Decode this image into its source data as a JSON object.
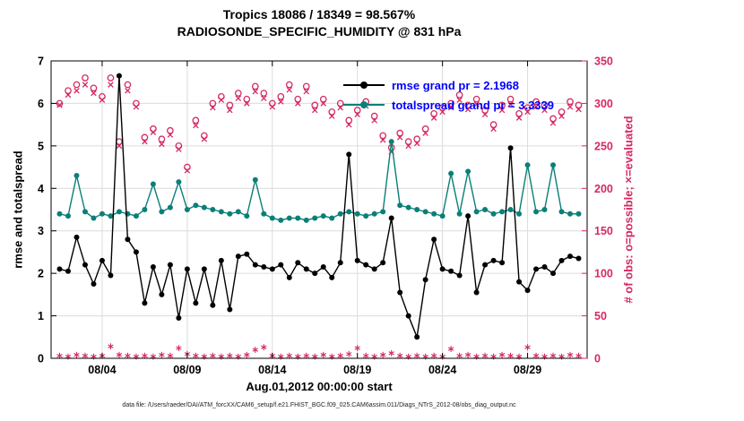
{
  "titles": {
    "line1": "Tropics 18086 / 18349 = 98.567%",
    "line2": "RADIOSONDE_SPECIFIC_HUMIDITY @ 831 hPa"
  },
  "x_axis_label": "Aug.01,2012 00:00:00 start",
  "y_left_label": "rmse and totalspread",
  "y_right_label": "# of obs: o=possible; ×=evaluated",
  "footer": "data file: /Users/raeder/DAI/ATM_forcXX/CAM6_setup/f.e21.FHIST_BGC.f09_025.CAM6assim.011/Diags_NTrS_2012-08/obs_diag_output.nc",
  "legend": {
    "rmse_label": "rmse grand pr = 2.1968",
    "totalspread_label": "totalspread grand pr = 3.3339"
  },
  "colors": {
    "rmse": "#000000",
    "totalspread": "#0a7f78",
    "obs": "#d5295f",
    "legend_text": "#0000ff",
    "grid": "#dcdcdc"
  },
  "chart_data": {
    "type": "line",
    "title": "Tropics 18086 / 18349 = 98.567% | RADIOSONDE_SPECIFIC_HUMIDITY @ 831 hPa",
    "xlabel": "Aug.01,2012 00:00:00 start",
    "ylabel_left": "rmse and totalspread",
    "ylabel_right": "# of obs: o=possible; ×=evaluated",
    "xlim": [
      0,
      31.5
    ],
    "ylim_left": [
      0,
      7
    ],
    "ylim_right": [
      0,
      350
    ],
    "grid": true,
    "legend_position": "upper-right-inside",
    "x_ticks": [
      {
        "pos": 3,
        "label": "08/04"
      },
      {
        "pos": 8,
        "label": "08/09"
      },
      {
        "pos": 13,
        "label": "08/14"
      },
      {
        "pos": 18,
        "label": "08/19"
      },
      {
        "pos": 23,
        "label": "08/24"
      },
      {
        "pos": 28,
        "label": "08/29"
      }
    ],
    "y_left_ticks": [
      0,
      1,
      2,
      3,
      4,
      5,
      6,
      7
    ],
    "y_right_ticks": [
      0,
      50,
      100,
      150,
      200,
      250,
      300,
      350
    ],
    "x_days": [
      0.5,
      1,
      1.5,
      2,
      2.5,
      3,
      3.5,
      4,
      4.5,
      5,
      5.5,
      6,
      6.5,
      7,
      7.5,
      8,
      8.5,
      9,
      9.5,
      10,
      10.5,
      11,
      11.5,
      12,
      12.5,
      13,
      13.5,
      14,
      14.5,
      15,
      15.5,
      16,
      16.5,
      17,
      17.5,
      18,
      18.5,
      19,
      19.5,
      20,
      20.5,
      21,
      21.5,
      22,
      22.5,
      23,
      23.5,
      24,
      24.5,
      25,
      25.5,
      26,
      26.5,
      27,
      27.5,
      28,
      28.5,
      29,
      29.5,
      30,
      30.5,
      31
    ],
    "series": [
      {
        "name": "rmse",
        "axis": "left",
        "marker": "dot",
        "grand_mean": 2.1968,
        "values": [
          2.1,
          2.05,
          2.85,
          2.2,
          1.75,
          2.3,
          1.95,
          6.65,
          2.8,
          2.5,
          1.3,
          2.15,
          1.5,
          2.2,
          0.95,
          2.1,
          1.3,
          2.1,
          1.25,
          2.3,
          1.15,
          2.4,
          2.45,
          2.2,
          2.15,
          2.1,
          2.2,
          1.9,
          2.25,
          2.1,
          2.0,
          2.15,
          1.9,
          2.25,
          4.8,
          2.3,
          2.2,
          2.1,
          2.25,
          3.3,
          1.55,
          1.0,
          0.5,
          1.85,
          2.8,
          2.1,
          2.05,
          1.95,
          3.35,
          1.55,
          2.2,
          2.3,
          2.25,
          4.95,
          1.8,
          1.6,
          2.1,
          2.15,
          2.0,
          2.3,
          2.4,
          2.35
        ]
      },
      {
        "name": "totalspread",
        "axis": "left",
        "marker": "dot",
        "grand_mean": 3.3339,
        "values": [
          3.4,
          3.35,
          4.3,
          3.45,
          3.3,
          3.4,
          3.35,
          3.45,
          3.4,
          3.35,
          3.5,
          4.1,
          3.45,
          3.55,
          4.15,
          3.5,
          3.6,
          3.55,
          3.5,
          3.45,
          3.4,
          3.45,
          3.35,
          4.2,
          3.4,
          3.3,
          3.25,
          3.3,
          3.3,
          3.25,
          3.3,
          3.35,
          3.3,
          3.4,
          3.45,
          3.4,
          3.35,
          3.4,
          3.45,
          5.1,
          3.6,
          3.55,
          3.5,
          3.45,
          3.4,
          3.35,
          4.35,
          3.4,
          4.4,
          3.45,
          3.5,
          3.4,
          3.45,
          3.5,
          3.4,
          4.55,
          3.45,
          3.5,
          4.55,
          3.45,
          3.4,
          3.4
        ]
      },
      {
        "name": "obs_possible",
        "axis": "right",
        "marker": "o",
        "values": [
          300,
          315,
          322,
          330,
          318,
          308,
          330,
          255,
          322,
          300,
          260,
          270,
          258,
          268,
          250,
          225,
          280,
          262,
          300,
          308,
          298,
          312,
          305,
          320,
          312,
          300,
          308,
          322,
          305,
          320,
          298,
          305,
          290,
          300,
          280,
          292,
          302,
          285,
          262,
          248,
          265,
          255,
          258,
          270,
          288,
          295,
          300,
          310,
          298,
          305,
          292,
          275,
          298,
          305,
          288,
          295,
          302,
          298,
          282,
          290,
          302,
          298
        ]
      },
      {
        "name": "obs_evaluated",
        "axis": "right",
        "marker": "x",
        "values": [
          298,
          310,
          315,
          322,
          312,
          304,
          322,
          250,
          315,
          296,
          255,
          266,
          252,
          263,
          246,
          221,
          274,
          258,
          295,
          304,
          292,
          306,
          300,
          314,
          306,
          296,
          302,
          316,
          300,
          314,
          292,
          300,
          285,
          295,
          275,
          287,
          297,
          280,
          257,
          243,
          260,
          250,
          253,
          265,
          283,
          290,
          295,
          304,
          293,
          299,
          287,
          270,
          292,
          299,
          283,
          290,
          296,
          292,
          277,
          285,
          296,
          293
        ]
      },
      {
        "name": "obs_baseline",
        "axis": "right",
        "marker": "asterisk",
        "values": [
          3,
          2,
          4,
          3,
          2,
          3,
          14,
          4,
          3,
          2,
          3,
          2,
          4,
          3,
          12,
          5,
          3,
          2,
          3,
          2,
          3,
          2,
          4,
          10,
          13,
          3,
          2,
          3,
          2,
          3,
          2,
          4,
          2,
          3,
          5,
          12,
          3,
          2,
          4,
          6,
          3,
          2,
          3,
          2,
          3,
          2,
          11,
          3,
          4,
          2,
          3,
          2,
          4,
          3,
          2,
          13,
          3,
          2,
          3,
          2,
          4,
          3
        ]
      }
    ]
  }
}
